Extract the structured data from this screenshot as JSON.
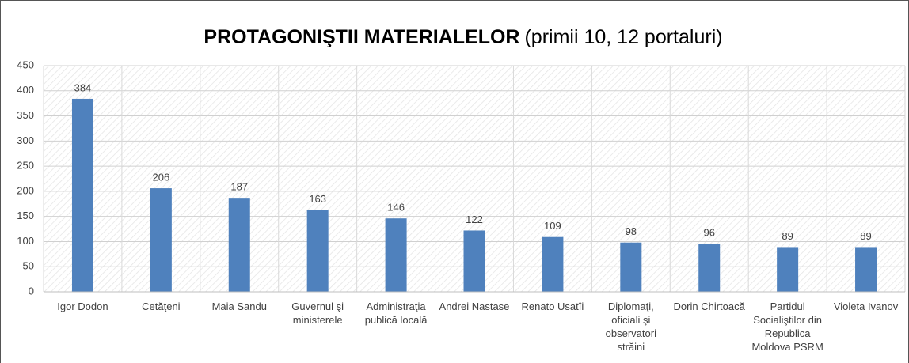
{
  "chart_data": {
    "type": "bar",
    "title": "PROTAGONIŞTII MATERIALELOR",
    "subtitle": "(primii 10, 12 portaluri)",
    "categories": [
      "Igor Dodon",
      "Cetăţeni",
      "Maia Sandu",
      "Guvernul şi ministerele",
      "Administraţia publică locală",
      "Andrei Nastase",
      "Renato Usatîi",
      "Diplomaţi, oficiali şi observatori străini",
      "Dorin Chirtoacă",
      "Partidul Socialiştilor din Republica Moldova PSRM",
      "Violeta Ivanov"
    ],
    "values": [
      384,
      206,
      187,
      163,
      146,
      122,
      109,
      98,
      96,
      89,
      89
    ],
    "color": "#4f81bd",
    "ylim": [
      0,
      450
    ],
    "yticks": [
      0,
      50,
      100,
      150,
      200,
      250,
      300,
      350,
      400,
      450
    ],
    "grid": true
  }
}
